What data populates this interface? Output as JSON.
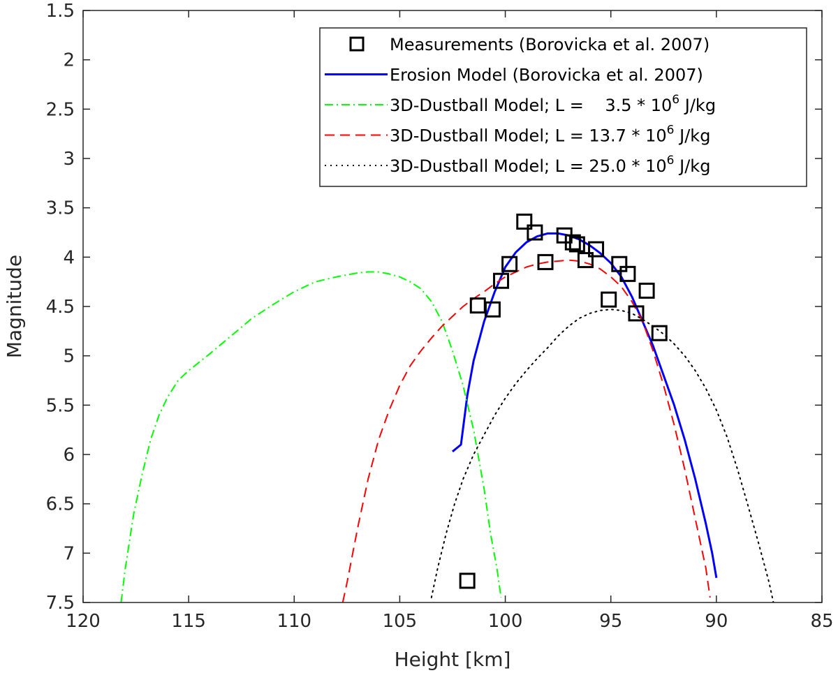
{
  "chart_data": {
    "type": "line",
    "title": "",
    "xlabel": "Height [km]",
    "ylabel": "Magnitude",
    "xlim": [
      120,
      85
    ],
    "ylim": [
      1.5,
      7.5
    ],
    "y_reversed": true,
    "x_reversed": true,
    "grid": false,
    "legend_position": "top-right",
    "xticks": [
      "120",
      "115",
      "110",
      "105",
      "100",
      "95",
      "90",
      "85"
    ],
    "yticks": [
      "1.5",
      "2",
      "2.5",
      "3",
      "3.5",
      "4",
      "4.5",
      "5",
      "5.5",
      "6",
      "6.5",
      "7",
      "7.5"
    ],
    "series": [
      {
        "name": "Measurements (Borovicka et al. 2007)",
        "style": "markers-square",
        "color": "#000000",
        "x": [
          101.8,
          101.3,
          100.6,
          100.2,
          99.8,
          99.1,
          98.6,
          98.1,
          97.2,
          96.8,
          96.6,
          96.2,
          95.7,
          95.1,
          94.6,
          94.2,
          93.8,
          93.3,
          92.7
        ],
        "y": [
          7.28,
          4.49,
          4.53,
          4.24,
          4.07,
          3.64,
          3.75,
          4.05,
          3.78,
          3.85,
          3.87,
          4.03,
          3.92,
          4.43,
          4.07,
          4.17,
          4.57,
          4.34,
          4.77
        ]
      },
      {
        "name": "Erosion Model (Borovicka et al. 2007)",
        "style": "solid",
        "color": "#0000ff",
        "x": [
          102.5,
          102.1,
          101.8,
          101.5,
          101.0,
          100.5,
          100.0,
          99.5,
          99.0,
          98.5,
          98.0,
          97.5,
          97.0,
          96.5,
          96.0,
          95.5,
          95.0,
          94.5,
          94.0,
          93.5,
          93.0,
          92.5,
          92.0,
          91.5,
          91.0,
          90.5,
          90.2,
          90.0
        ],
        "y": [
          5.97,
          5.9,
          5.4,
          5.05,
          4.65,
          4.35,
          4.1,
          3.95,
          3.85,
          3.79,
          3.76,
          3.76,
          3.78,
          3.82,
          3.88,
          3.96,
          4.06,
          4.2,
          4.4,
          4.65,
          4.9,
          5.2,
          5.5,
          5.85,
          6.25,
          6.7,
          7.0,
          7.25
        ]
      },
      {
        "name": "3D-Dustball Model; L =    3.5 * 10",
        "name_sup": "6",
        "name_suffix": " J/kg",
        "style": "dashdot",
        "color": "#00ff00",
        "x": [
          118.2,
          118.0,
          117.6,
          117.2,
          116.8,
          116.4,
          116.0,
          115.5,
          115.0,
          114.0,
          113.0,
          112.0,
          111.0,
          110.0,
          109.0,
          108.0,
          107.0,
          106.5,
          106.0,
          105.5,
          105.0,
          104.5,
          104.0,
          103.5,
          103.0,
          102.5,
          102.0,
          101.5,
          101.0,
          100.7,
          100.4,
          100.2
        ],
        "y": [
          7.5,
          7.15,
          6.6,
          6.2,
          5.85,
          5.6,
          5.42,
          5.25,
          5.15,
          4.98,
          4.8,
          4.62,
          4.48,
          4.35,
          4.25,
          4.2,
          4.16,
          4.15,
          4.15,
          4.17,
          4.2,
          4.25,
          4.32,
          4.45,
          4.65,
          4.95,
          5.3,
          5.75,
          6.35,
          6.8,
          7.15,
          7.45
        ]
      },
      {
        "name": "3D-Dustball Model; L = 13.7 * 10",
        "name_sup": "6",
        "name_suffix": " J/kg",
        "style": "dashed",
        "color": "#ff0000",
        "x": [
          107.7,
          107.5,
          107.0,
          106.5,
          106.0,
          105.5,
          105.0,
          104.5,
          104.0,
          103.5,
          103.0,
          102.5,
          102.0,
          101.5,
          101.0,
          100.5,
          100.0,
          99.5,
          99.0,
          98.5,
          98.0,
          97.5,
          97.0,
          96.5,
          96.0,
          95.5,
          95.0,
          94.5,
          94.0,
          93.5,
          93.0,
          92.5,
          92.0,
          91.5,
          91.0,
          90.5,
          90.3
        ],
        "y": [
          7.5,
          7.3,
          6.75,
          6.25,
          5.85,
          5.55,
          5.3,
          5.1,
          4.95,
          4.82,
          4.7,
          4.6,
          4.5,
          4.42,
          4.35,
          4.27,
          4.2,
          4.15,
          4.1,
          4.07,
          4.05,
          4.04,
          4.03,
          4.04,
          4.07,
          4.12,
          4.2,
          4.3,
          4.45,
          4.65,
          4.95,
          5.3,
          5.7,
          6.15,
          6.65,
          7.15,
          7.45
        ]
      },
      {
        "name": "3D-Dustball Model; L = 25.0 * 10",
        "name_sup": "6",
        "name_suffix": " J/kg",
        "style": "dotted",
        "color": "#000000",
        "x": [
          103.5,
          103.2,
          102.8,
          102.4,
          102.0,
          101.5,
          101.0,
          100.5,
          100.0,
          99.5,
          99.0,
          98.5,
          98.0,
          97.5,
          97.0,
          96.5,
          96.0,
          95.5,
          95.0,
          94.5,
          94.0,
          93.5,
          93.0,
          92.5,
          92.0,
          91.5,
          91.0,
          90.5,
          90.0,
          89.5,
          89.0,
          88.5,
          88.0,
          87.5,
          87.3
        ],
        "y": [
          7.45,
          7.15,
          6.8,
          6.5,
          6.25,
          6.0,
          5.8,
          5.6,
          5.43,
          5.28,
          5.15,
          5.03,
          4.92,
          4.8,
          4.7,
          4.62,
          4.57,
          4.54,
          4.53,
          4.54,
          4.57,
          4.63,
          4.7,
          4.78,
          4.88,
          5.0,
          5.15,
          5.33,
          5.55,
          5.82,
          6.15,
          6.52,
          6.9,
          7.3,
          7.5
        ]
      }
    ]
  }
}
